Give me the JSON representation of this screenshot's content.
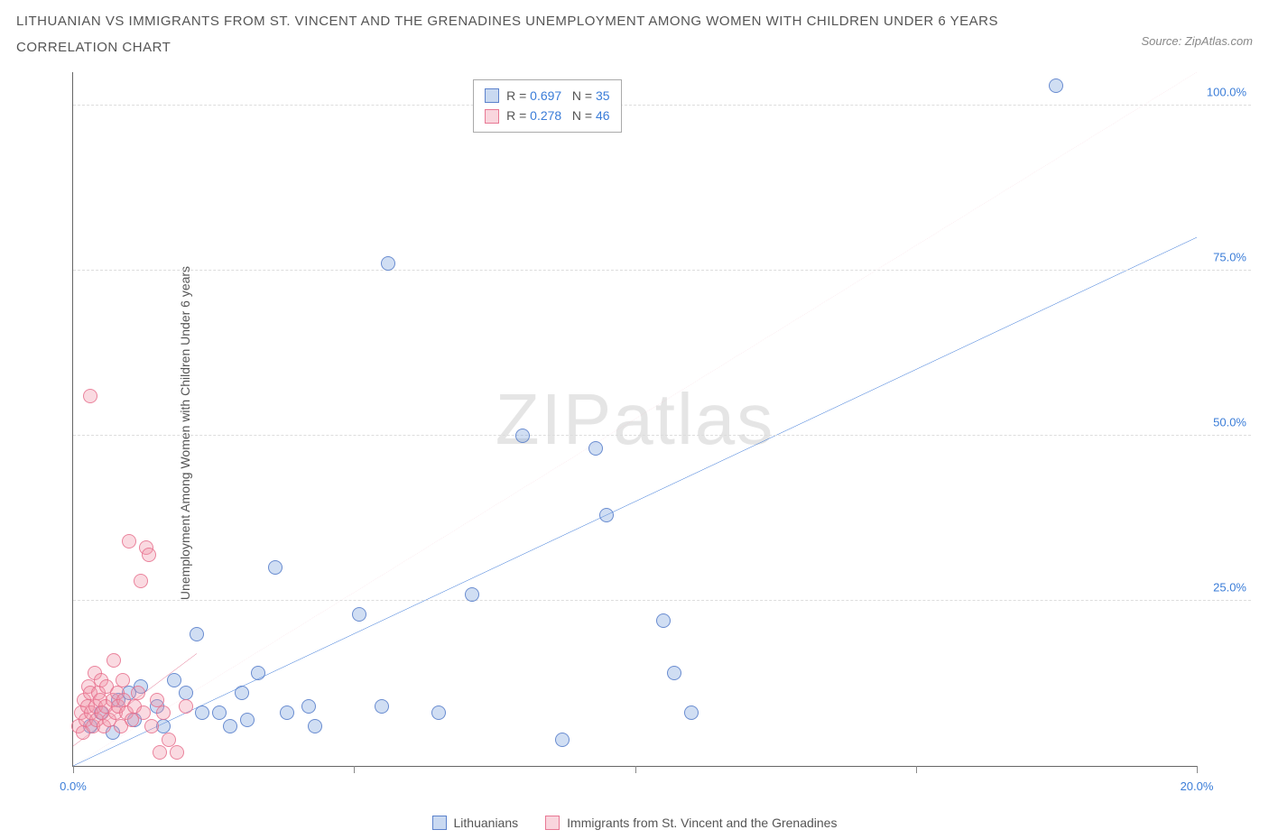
{
  "title": "LITHUANIAN VS IMMIGRANTS FROM ST. VINCENT AND THE GRENADINES UNEMPLOYMENT AMONG WOMEN WITH CHILDREN UNDER 6 YEARS CORRELATION CHART",
  "source_label": "Source: ZipAtlas.com",
  "y_axis_label": "Unemployment Among Women with Children Under 6 years",
  "watermark": "ZIPatlas",
  "chart": {
    "type": "scatter",
    "background_color": "#ffffff",
    "grid_color": "#dddddd",
    "axis_color": "#666666",
    "xlim": [
      0,
      20
    ],
    "ylim": [
      0,
      105
    ],
    "x_ticks": [
      0,
      5,
      10,
      15,
      20
    ],
    "x_tick_labels": [
      "0.0%",
      "",
      "",
      "",
      "20.0%"
    ],
    "y_ticks": [
      25,
      50,
      75,
      100
    ],
    "y_tick_labels": [
      "25.0%",
      "50.0%",
      "75.0%",
      "100.0%"
    ],
    "tick_label_color": "#3b7dd8",
    "axis_label_color": "#555555",
    "axis_label_fontsize": 14,
    "series": [
      {
        "name": "Lithuanians",
        "color_fill": "rgba(120,160,220,0.35)",
        "color_border": "rgba(80,120,200,0.8)",
        "marker_size": 16,
        "R": "0.697",
        "N": "35",
        "trend": {
          "x1": 0,
          "y1": 0,
          "x2": 20,
          "y2": 80,
          "color": "#2e6fd6",
          "width": 2,
          "dash": "none"
        },
        "trend_ext": {
          "x1": 0,
          "y1": 0,
          "x2": 20,
          "y2": 105,
          "color": "rgba(240,160,180,0.7)",
          "width": 1,
          "dash": "4,4"
        },
        "points": [
          [
            0.3,
            6
          ],
          [
            0.5,
            8
          ],
          [
            0.7,
            5
          ],
          [
            0.8,
            10
          ],
          [
            1.0,
            11
          ],
          [
            1.1,
            7
          ],
          [
            1.2,
            12
          ],
          [
            1.5,
            9
          ],
          [
            1.6,
            6
          ],
          [
            1.8,
            13
          ],
          [
            2.0,
            11
          ],
          [
            2.2,
            20
          ],
          [
            2.3,
            8
          ],
          [
            2.6,
            8
          ],
          [
            2.8,
            6
          ],
          [
            3.0,
            11
          ],
          [
            3.1,
            7
          ],
          [
            3.3,
            14
          ],
          [
            3.6,
            30
          ],
          [
            3.8,
            8
          ],
          [
            4.2,
            9
          ],
          [
            4.3,
            6
          ],
          [
            5.1,
            23
          ],
          [
            5.5,
            9
          ],
          [
            5.6,
            76
          ],
          [
            6.5,
            8
          ],
          [
            7.1,
            26
          ],
          [
            8.0,
            50
          ],
          [
            8.7,
            4
          ],
          [
            9.3,
            48
          ],
          [
            9.5,
            38
          ],
          [
            10.5,
            22
          ],
          [
            10.7,
            14
          ],
          [
            11.0,
            8
          ],
          [
            17.5,
            103
          ]
        ]
      },
      {
        "name": "Immigrants from St. Vincent and the Grenadines",
        "color_fill": "rgba(240,150,170,0.35)",
        "color_border": "rgba(230,110,140,0.8)",
        "marker_size": 16,
        "R": "0.278",
        "N": "46",
        "trend": {
          "x1": 0,
          "y1": 3,
          "x2": 2.2,
          "y2": 17,
          "color": "#e06a8a",
          "width": 2,
          "dash": "none"
        },
        "points": [
          [
            0.1,
            6
          ],
          [
            0.15,
            8
          ],
          [
            0.18,
            5
          ],
          [
            0.2,
            10
          ],
          [
            0.22,
            7
          ],
          [
            0.25,
            9
          ],
          [
            0.28,
            12
          ],
          [
            0.3,
            11
          ],
          [
            0.3,
            56
          ],
          [
            0.32,
            8
          ],
          [
            0.35,
            6
          ],
          [
            0.38,
            14
          ],
          [
            0.4,
            9
          ],
          [
            0.42,
            7
          ],
          [
            0.45,
            11
          ],
          [
            0.48,
            10
          ],
          [
            0.5,
            13
          ],
          [
            0.52,
            8
          ],
          [
            0.55,
            6
          ],
          [
            0.58,
            9
          ],
          [
            0.6,
            12
          ],
          [
            0.65,
            7
          ],
          [
            0.7,
            10
          ],
          [
            0.72,
            16
          ],
          [
            0.75,
            8
          ],
          [
            0.78,
            11
          ],
          [
            0.8,
            9
          ],
          [
            0.85,
            6
          ],
          [
            0.88,
            13
          ],
          [
            0.9,
            10
          ],
          [
            0.95,
            8
          ],
          [
            1.0,
            34
          ],
          [
            1.05,
            7
          ],
          [
            1.1,
            9
          ],
          [
            1.15,
            11
          ],
          [
            1.2,
            28
          ],
          [
            1.25,
            8
          ],
          [
            1.3,
            33
          ],
          [
            1.35,
            32
          ],
          [
            1.4,
            6
          ],
          [
            1.5,
            10
          ],
          [
            1.55,
            2
          ],
          [
            1.6,
            8
          ],
          [
            1.7,
            4
          ],
          [
            1.85,
            2
          ],
          [
            2.0,
            9
          ]
        ]
      }
    ]
  },
  "stats_box": {
    "top_pct": 1,
    "left_pct": 35
  },
  "legend": {
    "items": [
      {
        "label": "Lithuanians",
        "swatch": "blue"
      },
      {
        "label": "Immigrants from St. Vincent and the Grenadines",
        "swatch": "pink"
      }
    ]
  }
}
